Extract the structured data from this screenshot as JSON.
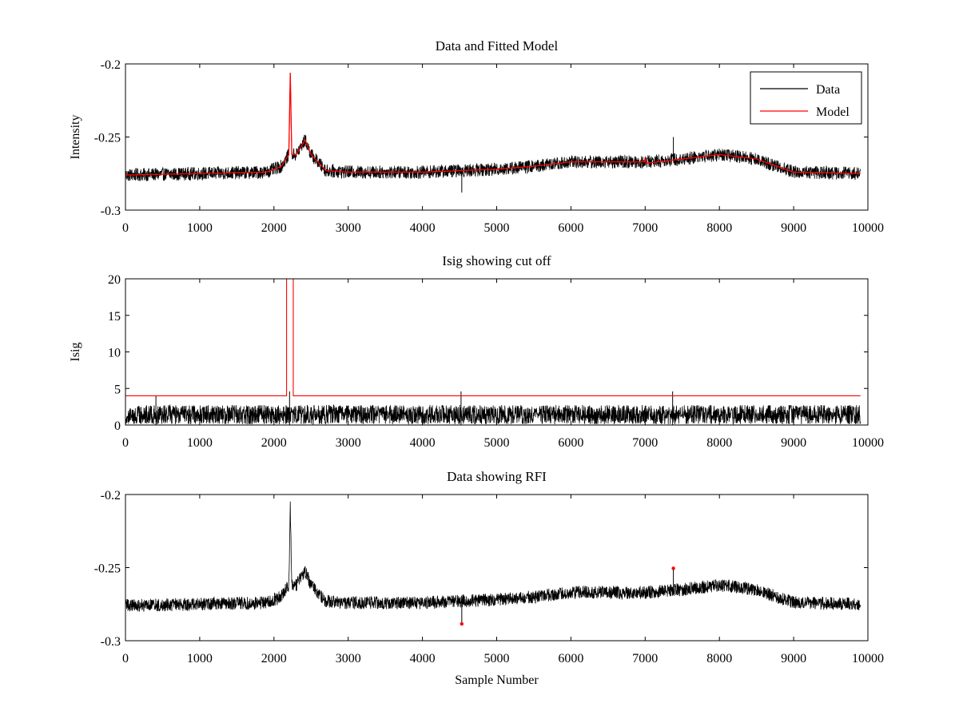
{
  "figure": {
    "background": "#ffffff",
    "data_color": "#000000",
    "model_color": "#ff0000",
    "rfi_color": "#ff0000"
  },
  "chart_data": [
    {
      "id": "top",
      "type": "line",
      "title": "Data and Fitted Model",
      "xlabel": "",
      "ylabel": "Intensity",
      "xlim": [
        0,
        10000
      ],
      "ylim": [
        -0.3,
        -0.2
      ],
      "xticks": [
        0,
        1000,
        2000,
        3000,
        4000,
        5000,
        6000,
        7000,
        8000,
        9000,
        10000
      ],
      "xtick_labels": [
        "0",
        "1000",
        "2000",
        "3000",
        "4000",
        "5000",
        "6000",
        "7000",
        "8000",
        "9000",
        "10000"
      ],
      "yticks": [
        -0.3,
        -0.25,
        -0.2
      ],
      "ytick_labels": [
        "-0.3",
        "-0.25",
        "-0.2"
      ],
      "legend": {
        "position": "top-right",
        "entries": [
          "Data",
          "Model"
        ]
      },
      "series": [
        {
          "name": "Data",
          "color": "#000000",
          "kind": "noisy",
          "n_samples": 9900,
          "noise_amplitude": 0.0045,
          "baseline": {
            "x": [
              0,
              1000,
              1900,
              2100,
              2200,
              2220,
              2240,
              2300,
              2420,
              2500,
              2700,
              3000,
              4000,
              5000,
              5500,
              6000,
              7000,
              7500,
              8000,
              8500,
              9000,
              9900
            ],
            "y": [
              -0.276,
              -0.275,
              -0.274,
              -0.27,
              -0.262,
              -0.208,
              -0.262,
              -0.262,
              -0.252,
              -0.262,
              -0.273,
              -0.274,
              -0.274,
              -0.272,
              -0.27,
              -0.267,
              -0.267,
              -0.265,
              -0.262,
              -0.265,
              -0.274,
              -0.275
            ]
          },
          "spikes": [
            {
              "x": 7380,
              "y": -0.25
            },
            {
              "x": 4530,
              "y": -0.288
            }
          ]
        },
        {
          "name": "Model",
          "color": "#ff0000",
          "kind": "smooth",
          "x": [
            0,
            1000,
            1900,
            2100,
            2200,
            2220,
            2240,
            2300,
            2420,
            2500,
            2700,
            3000,
            4000,
            5000,
            5500,
            6000,
            6990,
            7000,
            7010,
            7500,
            8000,
            8500,
            9000,
            9900
          ],
          "y": [
            -0.276,
            -0.275,
            -0.274,
            -0.27,
            -0.262,
            -0.206,
            -0.262,
            -0.262,
            -0.252,
            -0.262,
            -0.273,
            -0.274,
            -0.274,
            -0.272,
            -0.27,
            -0.267,
            -0.267,
            -0.264,
            -0.268,
            -0.265,
            -0.262,
            -0.265,
            -0.274,
            -0.275
          ]
        }
      ]
    },
    {
      "id": "middle",
      "type": "line",
      "title": "Isig showing cut off",
      "xlabel": "",
      "ylabel": "Isig",
      "xlim": [
        0,
        10000
      ],
      "ylim": [
        0,
        20
      ],
      "xticks": [
        0,
        1000,
        2000,
        3000,
        4000,
        5000,
        6000,
        7000,
        8000,
        9000,
        10000
      ],
      "xtick_labels": [
        "0",
        "1000",
        "2000",
        "3000",
        "4000",
        "5000",
        "6000",
        "7000",
        "8000",
        "9000",
        "10000"
      ],
      "yticks": [
        0,
        5,
        10,
        15,
        20
      ],
      "ytick_labels": [
        "0",
        "5",
        "10",
        "15",
        "20"
      ],
      "series": [
        {
          "name": "Isig",
          "color": "#000000",
          "kind": "noisy_positive",
          "n_samples": 9900,
          "noise_amplitude": 1.2,
          "baseline": {
            "x": [
              0,
              9900
            ],
            "y": [
              1.0,
              1.0
            ]
          },
          "spikes": [
            {
              "x": 410,
              "y": 4.0
            },
            {
              "x": 2210,
              "y": 4.6
            },
            {
              "x": 4520,
              "y": 4.6
            },
            {
              "x": 7370,
              "y": 4.6
            }
          ]
        },
        {
          "name": "Cut off",
          "color": "#ff0000",
          "kind": "step",
          "x": [
            0,
            2170,
            2170,
            2260,
            2260,
            9900
          ],
          "y": [
            4,
            4,
            20,
            20,
            4,
            4
          ]
        }
      ]
    },
    {
      "id": "bottom",
      "type": "line",
      "title": "Data showing RFI",
      "xlabel": "Sample Number",
      "ylabel": "",
      "xlim": [
        0,
        10000
      ],
      "ylim": [
        -0.3,
        -0.2
      ],
      "xticks": [
        0,
        1000,
        2000,
        3000,
        4000,
        5000,
        6000,
        7000,
        8000,
        9000,
        10000
      ],
      "xtick_labels": [
        "0",
        "1000",
        "2000",
        "3000",
        "4000",
        "5000",
        "6000",
        "7000",
        "8000",
        "9000",
        "10000"
      ],
      "yticks": [
        -0.3,
        -0.25,
        -0.2
      ],
      "ytick_labels": [
        "-0.3",
        "-0.25",
        "-0.2"
      ],
      "series": [
        {
          "name": "Data",
          "color": "#000000",
          "kind": "noisy",
          "n_samples": 9900,
          "noise_amplitude": 0.0045,
          "baseline": {
            "x": [
              0,
              1000,
              1900,
              2100,
              2200,
              2220,
              2240,
              2300,
              2420,
              2500,
              2700,
              3000,
              4000,
              5000,
              5500,
              6000,
              7000,
              7500,
              8000,
              8500,
              9000,
              9900
            ],
            "y": [
              -0.276,
              -0.275,
              -0.274,
              -0.27,
              -0.262,
              -0.208,
              -0.262,
              -0.262,
              -0.252,
              -0.262,
              -0.273,
              -0.274,
              -0.274,
              -0.272,
              -0.27,
              -0.267,
              -0.267,
              -0.265,
              -0.262,
              -0.265,
              -0.274,
              -0.275
            ]
          },
          "spikes": [
            {
              "x": 7380,
              "y": -0.25
            },
            {
              "x": 4530,
              "y": -0.288
            }
          ]
        },
        {
          "name": "RFI",
          "color": "#ff0000",
          "kind": "markers",
          "points": [
            {
              "x": 4530,
              "y": -0.2885
            },
            {
              "x": 7380,
              "y": -0.2505
            }
          ]
        }
      ]
    }
  ]
}
